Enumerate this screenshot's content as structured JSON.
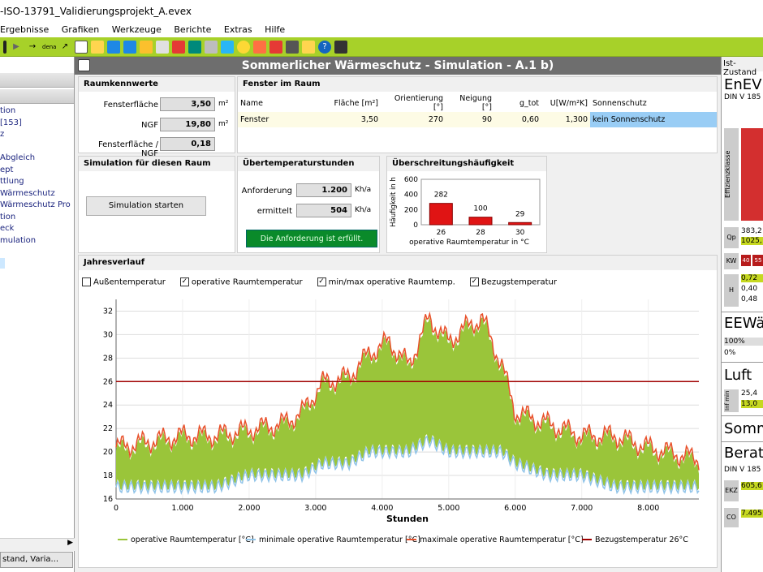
{
  "window": {
    "title": "-ISO-13791_Validierungsprojekt_A.evex"
  },
  "menu": [
    "Ergebnisse",
    "Grafiken",
    "Werkzeuge",
    "Berichte",
    "Extras",
    "Hilfe"
  ],
  "left": {
    "items": [
      "tion",
      "[153]",
      "z",
      "",
      "Abgleich",
      "ept",
      "ttlung",
      "Wärmeschutz",
      "Wärmeschutz Pro",
      "tion",
      "eck",
      "mulation"
    ],
    "bottom_tab": "stand, Varia..."
  },
  "header": "Sommerlicher Wärmeschutz - Simulation - A.1 b)",
  "raum": {
    "title": "Raumkennwerte",
    "rows": [
      {
        "label": "Fensterfläche",
        "value": "3,50",
        "unit": "m²"
      },
      {
        "label": "NGF",
        "value": "19,80",
        "unit": "m²"
      },
      {
        "label": "Fensterfläche / NGF",
        "value": "0,18",
        "unit": ""
      }
    ]
  },
  "fenster": {
    "title": "Fenster im Raum",
    "headers": [
      "Name",
      "Fläche [m²]",
      "Orientierung [°]",
      "Neigung [°]",
      "g_tot",
      "U[W/m²K]",
      "Sonnenschutz"
    ],
    "row": [
      "Fenster",
      "3,50",
      "270",
      "90",
      "0,60",
      "1,300",
      "kein Sonnenschutz"
    ]
  },
  "sim": {
    "title": "Simulation für diesen Raum",
    "button": "Simulation starten"
  },
  "ueber": {
    "title": "Übertemperaturstunden",
    "anf_label": "Anforderung",
    "anf_value": "1.200",
    "anf_unit": "Kh/a",
    "erm_label": "ermittelt",
    "erm_value": "504",
    "erm_unit": "Kh/a",
    "status": "Die Anforderung ist erfüllt."
  },
  "haeuf": {
    "title": "Überschreitungshäufigkeit",
    "ylabel": "Häufigkeit in h",
    "xlabel": "operative Raumtemperatur in °C",
    "yticks": [
      "600",
      "400",
      "200",
      "0"
    ],
    "bars": [
      {
        "x": "26",
        "v": 282
      },
      {
        "x": "28",
        "v": 100
      },
      {
        "x": "30",
        "v": 29
      }
    ],
    "ymax": 600
  },
  "jahr": {
    "title": "Jahresverlauf",
    "checks": [
      {
        "label": "Außentemperatur",
        "checked": false
      },
      {
        "label": "operative Raumtemperatur",
        "checked": true
      },
      {
        "label": "min/max operative Raumtemp.",
        "checked": true
      },
      {
        "label": "Bezugstemperatur",
        "checked": true
      }
    ],
    "xlabel": "Stunden"
  },
  "chart_data": {
    "type": "area",
    "title": "Jahresverlauf",
    "xlabel": "Stunden",
    "ylabel": "",
    "xlim": [
      0,
      8760
    ],
    "ylim": [
      16,
      33
    ],
    "xticks": [
      "0",
      "1.000",
      "2.000",
      "3.000",
      "4.000",
      "5.000",
      "6.000",
      "7.000",
      "8.000"
    ],
    "xtick_values": [
      0,
      1000,
      2000,
      3000,
      4000,
      5000,
      6000,
      7000,
      8000
    ],
    "yticks": [
      16,
      18,
      20,
      22,
      24,
      26,
      28,
      30,
      32
    ],
    "reference": {
      "name": "Bezugstemperatur 26°C",
      "value": 26
    },
    "series": [
      {
        "name": "operative Raumtemperatur [°C]",
        "color": "#9ac53a"
      },
      {
        "name": "minimale operative Raumtemperatur [°C]",
        "color": "#8fc3e8"
      },
      {
        "name": "maximale operative Raumtemperatur [°C]",
        "color": "#e8502a"
      },
      {
        "name": "Bezugstemperatur 26°C",
        "color": "#a00000"
      }
    ],
    "envelope_peaks": {
      "hours": [
        0,
        500,
        1000,
        1500,
        2000,
        2500,
        2800,
        3100,
        3500,
        3800,
        4100,
        4400,
        4700,
        5000,
        5200,
        5500,
        5800,
        6000,
        6500,
        7000,
        7500,
        8000,
        8760
      ],
      "max": [
        21,
        21.5,
        22,
        22,
        22.5,
        23,
        24,
        26.5,
        27,
        29,
        30,
        28,
        32,
        30,
        31,
        32,
        28,
        24,
        23,
        22,
        22,
        21,
        20
      ],
      "min": [
        17,
        17,
        17,
        17,
        18,
        18,
        18,
        19,
        19,
        20,
        20,
        20,
        21,
        20,
        20,
        20,
        20,
        19,
        18,
        18,
        17,
        17,
        17
      ]
    }
  },
  "right": {
    "label": "Ist-Zustand",
    "enev": "EnEV(",
    "din": "DIN V 185",
    "eff": "Effizienzklasse",
    "qp": "Qp",
    "qp1": "383,2",
    "qp2": "1025,",
    "kw": "KW",
    "kw1": "40",
    "kw2": "55",
    "ht": "H",
    "ht1": "0,72",
    "ht2": "0,40",
    "ht3": "0,48",
    "eew": "EEWä",
    "eew1": "100%",
    "eew2": "0%",
    "luft": "Luft",
    "inf": "Inf min",
    "luft1": "25,4",
    "luft2": "13,0",
    "somm": "Somm",
    "berat": "Beratu",
    "din2": "DIN V 185",
    "ekz": "EKZ",
    "ekz1": "605,6",
    "co2": "CO",
    "co21": "7.495"
  }
}
